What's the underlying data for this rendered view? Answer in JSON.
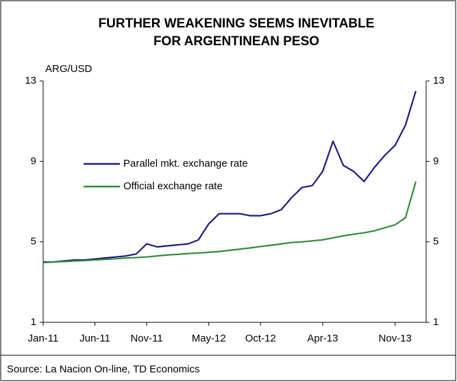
{
  "chart_data": {
    "type": "line",
    "title_lines": [
      "FURTHER WEAKENING SEEMS INEVITABLE",
      "FOR ARGENTINEAN PESO"
    ],
    "y_label": "ARG/USD",
    "source": "Source: La Nacion On-line, TD Economics",
    "x": [
      "2011-01",
      "2011-02",
      "2011-03",
      "2011-04",
      "2011-05",
      "2011-06",
      "2011-07",
      "2011-08",
      "2011-09",
      "2011-10",
      "2011-11",
      "2011-12",
      "2012-01",
      "2012-02",
      "2012-03",
      "2012-04",
      "2012-05",
      "2012-06",
      "2012-07",
      "2012-08",
      "2012-09",
      "2012-10",
      "2012-11",
      "2012-12",
      "2013-01",
      "2013-02",
      "2013-03",
      "2013-04",
      "2013-05",
      "2013-06",
      "2013-07",
      "2013-08",
      "2013-09",
      "2013-10",
      "2013-11",
      "2013-12",
      "2014-01"
    ],
    "series": [
      {
        "name": "Parallel mkt. exchange rate",
        "color": "#1a1a80",
        "values": [
          4.0,
          4.0,
          4.05,
          4.1,
          4.1,
          4.15,
          4.2,
          4.25,
          4.3,
          4.4,
          4.9,
          4.75,
          4.8,
          4.85,
          4.9,
          5.1,
          5.9,
          6.4,
          6.4,
          6.4,
          6.3,
          6.3,
          6.4,
          6.6,
          7.2,
          7.7,
          7.8,
          8.5,
          10.0,
          8.8,
          8.5,
          8.0,
          8.7,
          9.3,
          9.8,
          10.8,
          12.5
        ]
      },
      {
        "name": "Official exchange rate",
        "color": "#2e8b3a",
        "values": [
          3.97,
          4.0,
          4.02,
          4.05,
          4.07,
          4.1,
          4.13,
          4.16,
          4.2,
          4.22,
          4.25,
          4.3,
          4.35,
          4.38,
          4.42,
          4.45,
          4.48,
          4.52,
          4.58,
          4.64,
          4.7,
          4.77,
          4.83,
          4.9,
          4.97,
          5.0,
          5.05,
          5.1,
          5.2,
          5.3,
          5.38,
          5.45,
          5.55,
          5.7,
          5.85,
          6.2,
          8.0
        ]
      }
    ],
    "xlim": [
      "2011-01",
      "2014-02"
    ],
    "xticks": [
      {
        "value": "2011-01",
        "label": "Jan-11"
      },
      {
        "value": "2011-06",
        "label": "Jun-11"
      },
      {
        "value": "2011-11",
        "label": "Nov-11"
      },
      {
        "value": "2012-05",
        "label": "May-12"
      },
      {
        "value": "2012-10",
        "label": "Oct-12"
      },
      {
        "value": "2013-04",
        "label": "Apr-13"
      },
      {
        "value": "2013-11",
        "label": "Nov-13"
      }
    ],
    "ylim": [
      1,
      13
    ],
    "yticks": [
      1,
      5,
      9,
      13
    ],
    "grid": false
  }
}
